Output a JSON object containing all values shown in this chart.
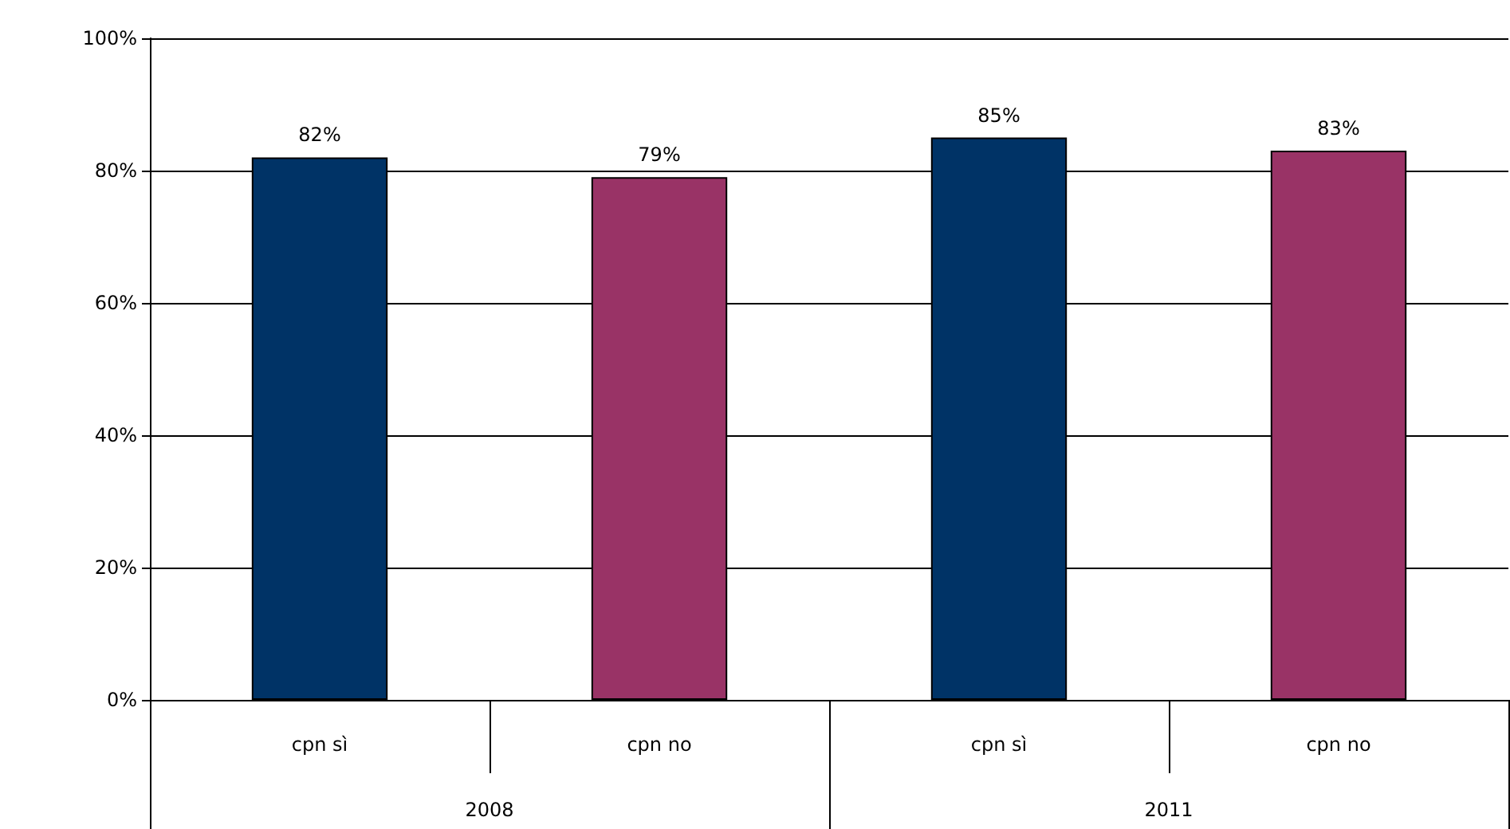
{
  "chart_data": {
    "type": "bar",
    "categories": [
      "cpn sì",
      "cpn no",
      "cpn sì",
      "cpn no"
    ],
    "values": [
      82,
      79,
      85,
      83
    ],
    "colors": [
      "#003366",
      "#993366",
      "#003366",
      "#993366"
    ],
    "value_labels": [
      "82%",
      "79%",
      "85%",
      "83%"
    ],
    "annotations": [
      "2008",
      "2011"
    ],
    "ylim": [
      0,
      100
    ],
    "yticks": [
      {
        "value": 0,
        "label": "0%"
      },
      {
        "value": 20,
        "label": "20%"
      },
      {
        "value": 40,
        "label": "40%"
      },
      {
        "value": 60,
        "label": "60%"
      },
      {
        "value": 80,
        "label": "80%"
      },
      {
        "value": 100,
        "label": "100%"
      }
    ],
    "grid": "y"
  }
}
